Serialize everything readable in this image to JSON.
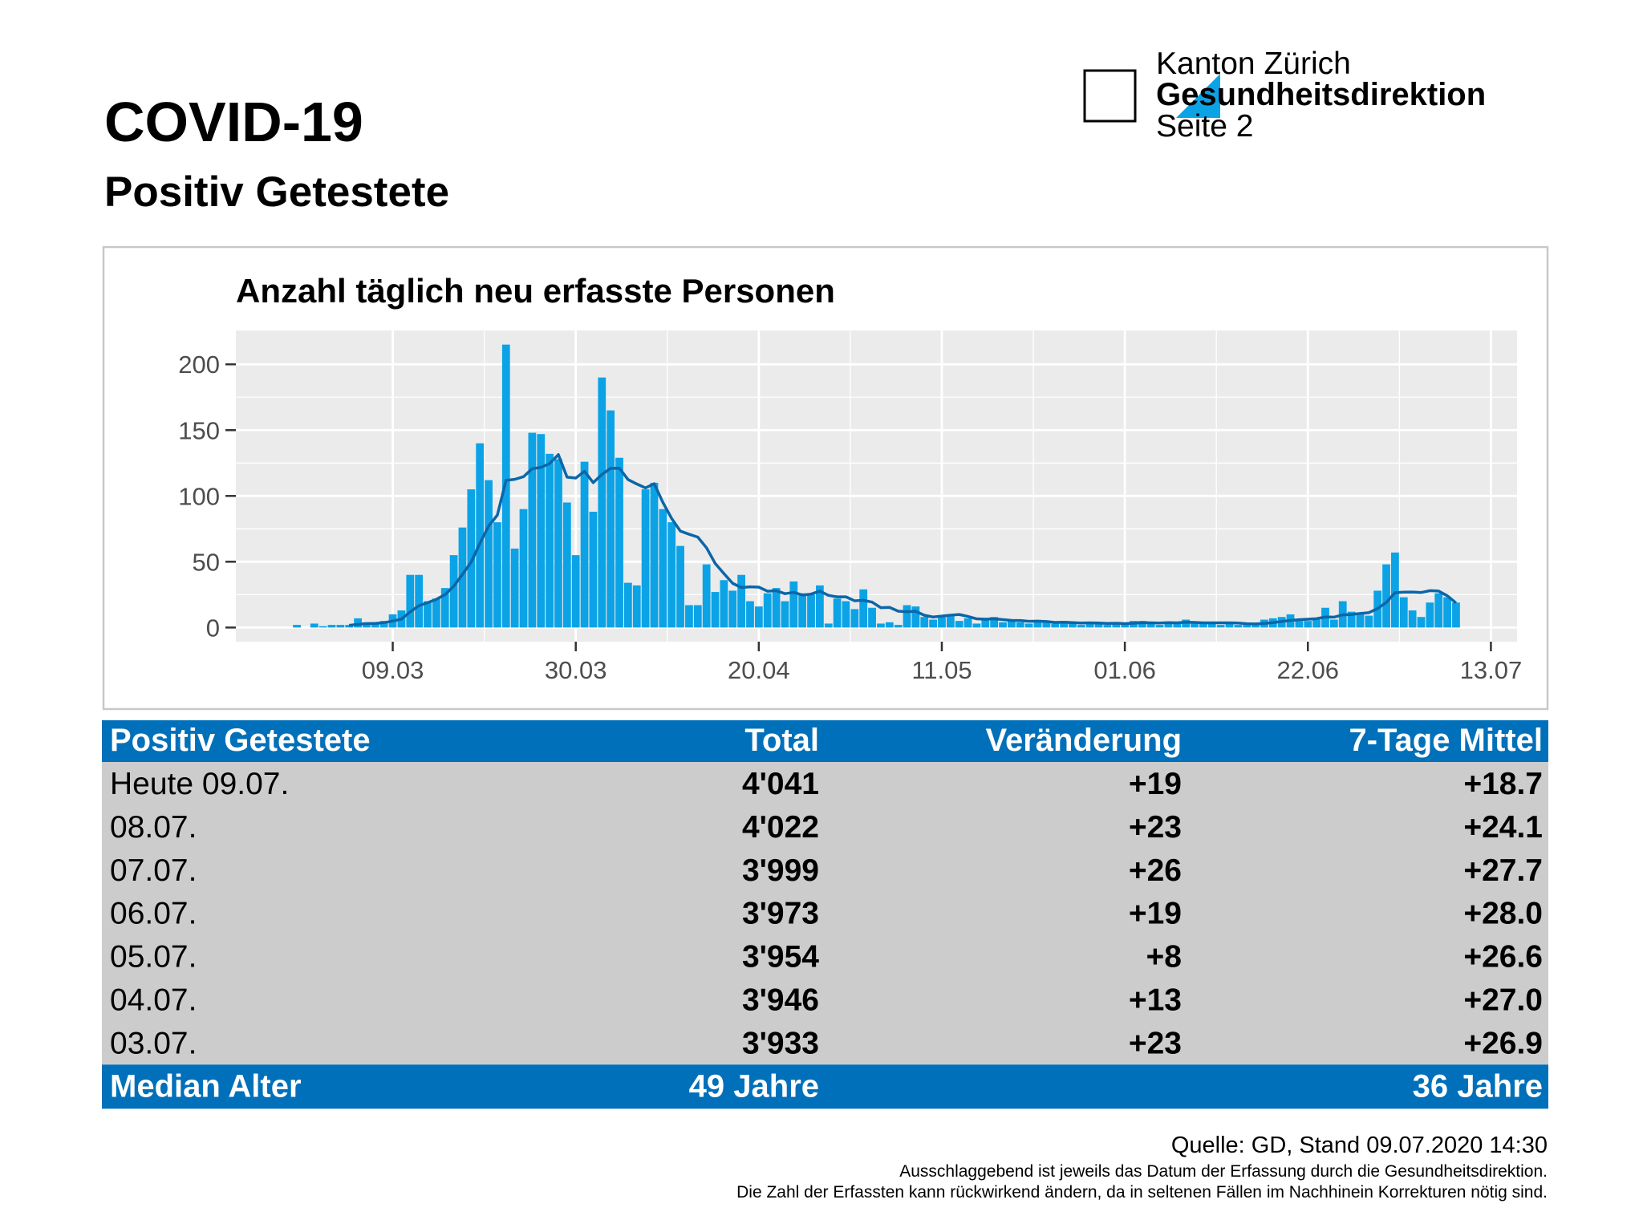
{
  "header": {
    "title": "COVID-19",
    "subtitle": "Positiv Getestete"
  },
  "logo": {
    "line1": "Kanton Zürich",
    "line2": "Gesundheitsdirektion",
    "line3": "Seite 2"
  },
  "chart_data": {
    "type": "bar",
    "title": "Anzahl täglich neu erfasste Personen",
    "x": [
      "27.02",
      "28.02",
      "29.02",
      "01.03",
      "02.03",
      "03.03",
      "04.03",
      "05.03",
      "06.03",
      "07.03",
      "08.03",
      "09.03",
      "10.03",
      "11.03",
      "12.03",
      "13.03",
      "14.03",
      "15.03",
      "16.03",
      "17.03",
      "18.03",
      "19.03",
      "20.03",
      "21.03",
      "22.03",
      "23.03",
      "24.03",
      "25.03",
      "26.03",
      "27.03",
      "28.03",
      "29.03",
      "30.03",
      "31.03",
      "01.04",
      "02.04",
      "03.04",
      "04.04",
      "05.04",
      "06.04",
      "07.04",
      "08.04",
      "09.04",
      "10.04",
      "11.04",
      "12.04",
      "13.04",
      "14.04",
      "15.04",
      "16.04",
      "17.04",
      "18.04",
      "19.04",
      "20.04",
      "21.04",
      "22.04",
      "23.04",
      "24.04",
      "25.04",
      "26.04",
      "27.04",
      "28.04",
      "29.04",
      "30.04",
      "01.05",
      "02.05",
      "03.05",
      "04.05",
      "05.05",
      "06.05",
      "07.05",
      "08.05",
      "09.05",
      "10.05",
      "11.05",
      "12.05",
      "13.05",
      "14.05",
      "15.05",
      "16.05",
      "17.05",
      "18.05",
      "19.05",
      "20.05",
      "21.05",
      "22.05",
      "23.05",
      "24.05",
      "25.05",
      "26.05",
      "27.05",
      "28.05",
      "29.05",
      "30.05",
      "31.05",
      "01.06",
      "02.06",
      "03.06",
      "04.06",
      "05.06",
      "06.06",
      "07.06",
      "08.06",
      "09.06",
      "10.06",
      "11.06",
      "12.06",
      "13.06",
      "14.06",
      "15.06",
      "16.06",
      "17.06",
      "18.06",
      "19.06",
      "20.06",
      "21.06",
      "22.06",
      "23.06",
      "24.06",
      "25.06",
      "26.06",
      "27.06",
      "28.06",
      "29.06",
      "30.06",
      "01.07",
      "02.07",
      "03.07",
      "04.07",
      "05.07",
      "06.07",
      "07.07",
      "08.07",
      "09.07"
    ],
    "series": [
      {
        "type": "bar",
        "color": "#0BA3E6",
        "values": [
          2,
          0,
          3,
          1,
          2,
          2,
          2,
          7,
          4,
          4,
          5,
          10,
          13,
          40,
          40,
          20,
          22,
          30,
          55,
          76,
          105,
          140,
          112,
          80,
          215,
          60,
          90,
          148,
          147,
          132,
          128,
          95,
          55,
          126,
          88,
          190,
          165,
          129,
          34,
          32,
          105,
          110,
          90,
          80,
          62,
          17,
          17,
          48,
          27,
          36,
          28,
          40,
          20,
          16,
          26,
          30,
          20,
          35,
          26,
          25,
          32,
          3,
          22,
          20,
          14,
          29,
          15,
          3,
          4,
          2,
          17,
          16,
          8,
          6,
          8,
          9,
          5,
          7,
          3,
          6,
          8,
          4,
          5,
          4,
          3,
          4,
          4,
          3,
          5,
          3,
          2,
          4,
          3,
          2,
          4,
          3,
          5,
          5,
          3,
          2,
          4,
          3,
          6,
          4,
          3,
          3,
          2,
          4,
          2,
          2,
          3,
          6,
          7,
          8,
          10,
          5,
          5,
          6,
          15,
          6,
          20,
          12,
          11,
          9,
          28,
          48,
          57,
          23,
          13,
          8,
          19,
          26,
          23,
          19
        ]
      },
      {
        "type": "line",
        "color": "#0B66A8",
        "values": [
          null,
          null,
          null,
          null,
          null,
          null,
          1.7,
          2.4,
          3.0,
          3.1,
          3.7,
          4.9,
          6.4,
          11.9,
          16.6,
          18.9,
          21.4,
          25.0,
          31.4,
          40.4,
          49.7,
          64.0,
          77.1,
          85.4,
          111.9,
          112.6,
          114.6,
          120.7,
          121.7,
          124.6,
          131.4,
          114.3,
          113.6,
          118.7,
          110.1,
          116.3,
          121.0,
          121.1,
          112.4,
          109.1,
          106.1,
          109.3,
          95.0,
          82.9,
          73.3,
          70.9,
          68.7,
          60.6,
          48.7,
          41.0,
          33.6,
          30.4,
          30.9,
          30.7,
          27.6,
          28.0,
          25.7,
          26.7,
          24.7,
          25.4,
          27.7,
          24.4,
          23.3,
          23.3,
          20.3,
          20.7,
          19.3,
          15.1,
          15.3,
          12.4,
          12.0,
          12.3,
          9.3,
          8.0,
          8.7,
          9.4,
          9.9,
          8.4,
          6.6,
          6.3,
          6.6,
          6.0,
          5.4,
          5.3,
          4.7,
          4.9,
          4.6,
          3.9,
          4.0,
          3.7,
          3.4,
          3.6,
          3.4,
          3.1,
          3.3,
          3.0,
          3.3,
          3.7,
          3.6,
          3.4,
          3.7,
          3.6,
          4.0,
          3.9,
          3.6,
          3.6,
          3.6,
          3.6,
          3.4,
          2.9,
          2.7,
          3.1,
          3.7,
          4.6,
          5.4,
          5.9,
          6.3,
          6.7,
          8.0,
          7.9,
          9.6,
          9.9,
          10.7,
          11.3,
          14.4,
          19.1,
          26.4,
          26.9,
          27.0,
          26.6,
          28.0,
          27.7,
          24.1,
          18.7
        ]
      }
    ],
    "xlim": [
      "20.02",
      "16.07"
    ],
    "xticks": [
      "09.03",
      "30.03",
      "20.04",
      "11.05",
      "01.06",
      "22.06",
      "13.07"
    ],
    "ylim": [
      -10.75,
      225.75
    ],
    "yticks": [
      0,
      50,
      100,
      150,
      200
    ],
    "grid": true
  },
  "table": {
    "columns": [
      "Positiv Getestete",
      "Total",
      "Veränderung",
      "7-Tage Mittel"
    ],
    "rows": [
      [
        "Heute 09.07.",
        "4'041",
        "+19",
        "+18.7"
      ],
      [
        "08.07.",
        "4'022",
        "+23",
        "+24.1"
      ],
      [
        "07.07.",
        "3'999",
        "+26",
        "+27.7"
      ],
      [
        "06.07.",
        "3'973",
        "+19",
        "+28.0"
      ],
      [
        "05.07.",
        "3'954",
        "+8",
        "+26.6"
      ],
      [
        "04.07.",
        "3'946",
        "+13",
        "+27.0"
      ],
      [
        "03.07.",
        "3'933",
        "+23",
        "+26.9"
      ]
    ],
    "footer": {
      "label": "Median Alter",
      "total": "49 Jahre",
      "mean": "36 Jahre"
    }
  },
  "footer": {
    "source": "Quelle: GD, Stand 09.07.2020 14:30",
    "notes": [
      "Ausschlaggebend ist jeweils das Datum der Erfassung durch die Gesundheitsdirektion.",
      "Die Zahl der Erfassten kann rückwirkend ändern, da in seltenen Fällen im Nachhinein Korrekturen nötig sind."
    ]
  }
}
